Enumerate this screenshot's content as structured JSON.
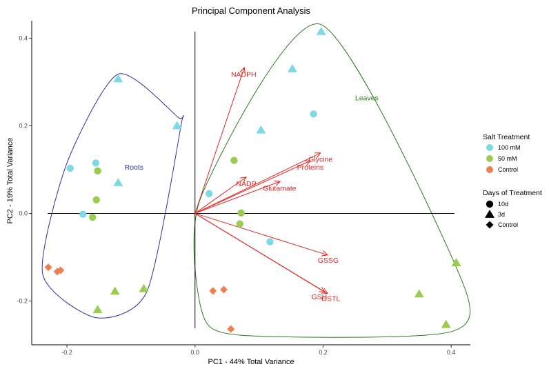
{
  "chart_data": {
    "type": "scatter",
    "title": "Principal Component Analysis",
    "xlabel": "PC1 - 44% Total Variance",
    "ylabel": "PC2 - 19% Total Variance",
    "xlim": [
      -0.255,
      0.43
    ],
    "ylim": [
      -0.3,
      0.44
    ],
    "xticks": [
      -0.2,
      0.0,
      0.2,
      0.4
    ],
    "xtick_labels": [
      "-0.2",
      "0.0",
      "0.2",
      "0.4"
    ],
    "yticks": [
      -0.2,
      0.0,
      0.2,
      0.4
    ],
    "ytick_labels": [
      "-0.2",
      "0.0",
      "0.2",
      "0.4"
    ],
    "colors": {
      "100 mM": "#7fd8e6",
      "50 mM": "#9acd4f",
      "Control": "#f07f4f",
      "vector": "#e8231f",
      "roots_hull": "#2b2fa0",
      "leaves_hull": "#2a7a1e"
    },
    "points": [
      {
        "x": -0.195,
        "y": 0.103,
        "treatment": "100 mM",
        "days": "10d"
      },
      {
        "x": -0.155,
        "y": 0.115,
        "treatment": "100 mM",
        "days": "10d"
      },
      {
        "x": -0.175,
        "y": -0.002,
        "treatment": "100 mM",
        "days": "10d"
      },
      {
        "x": 0.022,
        "y": 0.045,
        "treatment": "100 mM",
        "days": "10d"
      },
      {
        "x": 0.117,
        "y": -0.065,
        "treatment": "100 mM",
        "days": "10d"
      },
      {
        "x": 0.185,
        "y": 0.227,
        "treatment": "100 mM",
        "days": "10d"
      },
      {
        "x": -0.12,
        "y": 0.307,
        "treatment": "100 mM",
        "days": "3d"
      },
      {
        "x": -0.028,
        "y": 0.2,
        "treatment": "100 mM",
        "days": "3d"
      },
      {
        "x": -0.12,
        "y": 0.07,
        "treatment": "100 mM",
        "days": "3d"
      },
      {
        "x": 0.103,
        "y": 0.19,
        "treatment": "100 mM",
        "days": "3d"
      },
      {
        "x": 0.152,
        "y": 0.33,
        "treatment": "100 mM",
        "days": "3d"
      },
      {
        "x": 0.197,
        "y": 0.415,
        "treatment": "100 mM",
        "days": "3d"
      },
      {
        "x": -0.152,
        "y": 0.097,
        "treatment": "50 mM",
        "days": "10d"
      },
      {
        "x": -0.154,
        "y": 0.031,
        "treatment": "50 mM",
        "days": "10d"
      },
      {
        "x": -0.16,
        "y": -0.009,
        "treatment": "50 mM",
        "days": "10d"
      },
      {
        "x": 0.061,
        "y": 0.121,
        "treatment": "50 mM",
        "days": "10d"
      },
      {
        "x": 0.072,
        "y": 0.001,
        "treatment": "50 mM",
        "days": "10d"
      },
      {
        "x": 0.07,
        "y": -0.024,
        "treatment": "50 mM",
        "days": "10d"
      },
      {
        "x": -0.152,
        "y": -0.22,
        "treatment": "50 mM",
        "days": "3d"
      },
      {
        "x": -0.125,
        "y": -0.178,
        "treatment": "50 mM",
        "days": "3d"
      },
      {
        "x": -0.08,
        "y": -0.172,
        "treatment": "50 mM",
        "days": "3d"
      },
      {
        "x": 0.35,
        "y": -0.184,
        "treatment": "50 mM",
        "days": "3d"
      },
      {
        "x": 0.392,
        "y": -0.254,
        "treatment": "50 mM",
        "days": "3d"
      },
      {
        "x": 0.408,
        "y": -0.113,
        "treatment": "50 mM",
        "days": "3d"
      },
      {
        "x": -0.229,
        "y": -0.123,
        "treatment": "Control",
        "days": "Control"
      },
      {
        "x": -0.215,
        "y": -0.133,
        "treatment": "Control",
        "days": "Control"
      },
      {
        "x": -0.21,
        "y": -0.13,
        "treatment": "Control",
        "days": "Control"
      },
      {
        "x": 0.028,
        "y": -0.177,
        "treatment": "Control",
        "days": "Control"
      },
      {
        "x": 0.045,
        "y": -0.174,
        "treatment": "Control",
        "days": "Control"
      },
      {
        "x": 0.056,
        "y": -0.264,
        "treatment": "Control",
        "days": "Control"
      }
    ],
    "vectors": [
      {
        "label": "NADPH",
        "x": 0.077,
        "y": 0.333,
        "lx": 0.076,
        "ly": 0.312
      },
      {
        "label": "Glycine",
        "x": 0.196,
        "y": 0.138,
        "lx": 0.196,
        "ly": 0.118
      },
      {
        "label": "Proteins",
        "x": 0.18,
        "y": 0.12,
        "lx": 0.18,
        "ly": 0.1
      },
      {
        "label": "NADP",
        "x": 0.08,
        "y": 0.083,
        "lx": 0.08,
        "ly": 0.062
      },
      {
        "label": "Glutamate",
        "x": 0.133,
        "y": 0.073,
        "lx": 0.132,
        "ly": 0.052
      },
      {
        "label": "GSSG",
        "x": 0.207,
        "y": -0.095,
        "lx": 0.208,
        "ly": -0.113
      },
      {
        "label": "GSH",
        "x": 0.203,
        "y": -0.18,
        "lx": 0.194,
        "ly": -0.196
      },
      {
        "label": "GSTL",
        "x": 0.207,
        "y": -0.183,
        "lx": 0.212,
        "ly": -0.2
      }
    ],
    "hulls": [
      {
        "label": "Roots",
        "lx": -0.11,
        "ly": 0.1,
        "points": [
          [
            -0.12,
            0.318
          ],
          [
            -0.027,
            0.22
          ],
          [
            -0.022,
            0.2
          ],
          [
            -0.075,
            -0.178
          ],
          [
            -0.155,
            -0.238
          ],
          [
            -0.238,
            -0.138
          ],
          [
            -0.2,
            0.115
          ]
        ]
      },
      {
        "label": "Leaves",
        "lx": 0.25,
        "ly": 0.258,
        "points": [
          [
            0.195,
            0.432
          ],
          [
            0.41,
            -0.13
          ],
          [
            0.4,
            -0.27
          ],
          [
            0.07,
            -0.278
          ],
          [
            0.01,
            -0.22
          ],
          [
            0.01,
            0.04
          ]
        ]
      }
    ],
    "legend": {
      "treatment_title": "Salt Treatment",
      "treatments": [
        "100 mM",
        "50 mM",
        "Control"
      ],
      "days_title": "Days of Treatment",
      "days": [
        "10d",
        "3d",
        "Control"
      ]
    }
  }
}
